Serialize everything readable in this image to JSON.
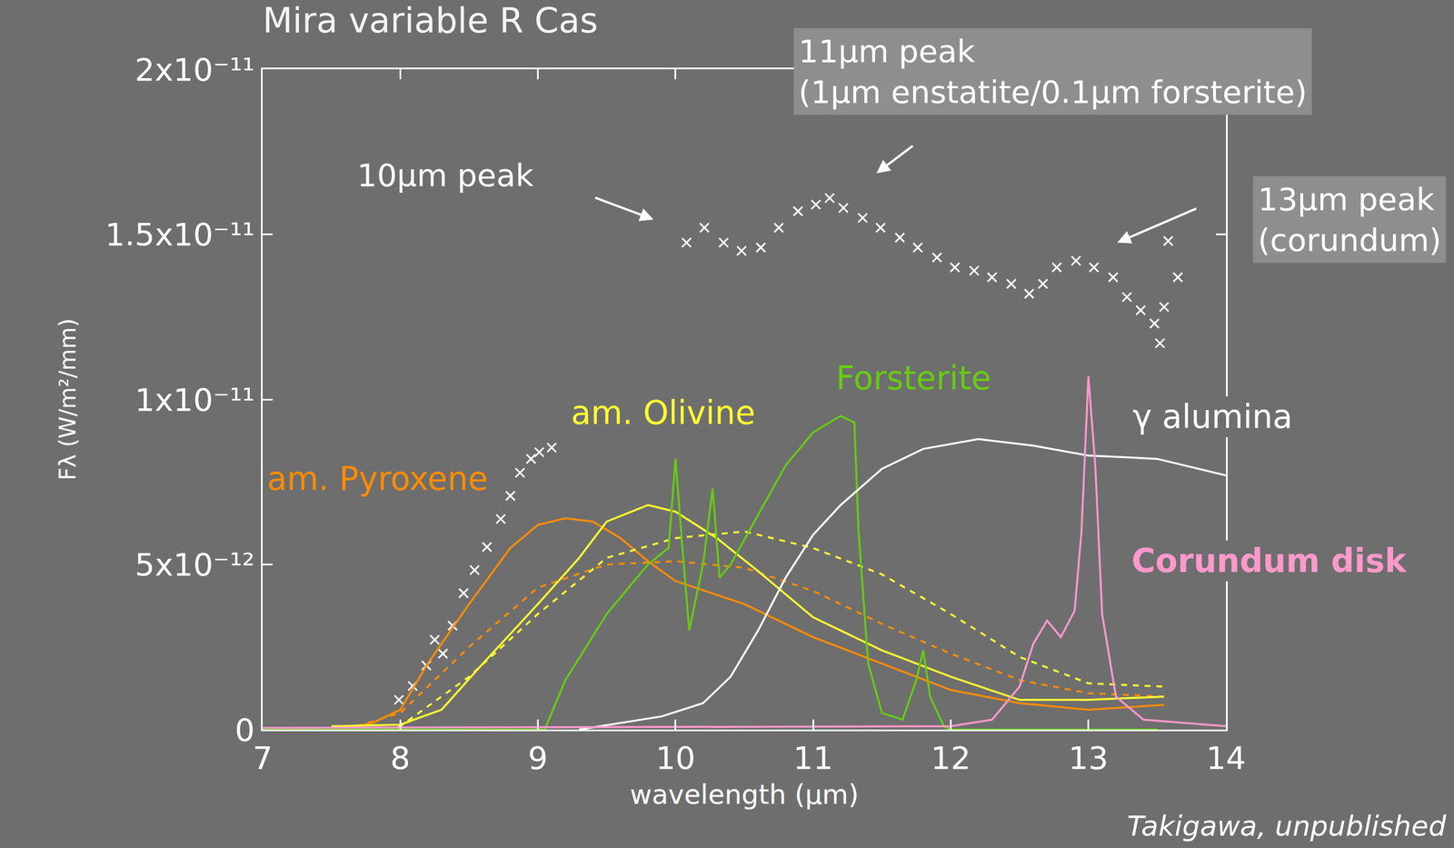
{
  "chart_data": {
    "type": "line",
    "title": "Mira variable R Cas",
    "x_label": "wavelength (μm)",
    "y_label": "Fλ (W/m²/mm)",
    "xlim": [
      7,
      14
    ],
    "xticks": [
      7,
      8,
      9,
      10,
      11,
      12,
      13,
      14
    ],
    "ylim": [
      0,
      2e-11
    ],
    "yticks": [
      0,
      {
        "value": 5e-12,
        "label": "5x10⁻¹²"
      },
      {
        "value": 1e-11,
        "label": "1x10⁻¹¹"
      },
      {
        "value": 1.5e-11,
        "label": "1.5x10⁻¹¹"
      },
      {
        "value": 2e-11,
        "label": "2x10⁻¹¹"
      }
    ],
    "grid": false,
    "annotations": [
      "10μm peak",
      "11μm peak",
      "(1μm enstatite/0.1μm forsterite)",
      "13μm peak",
      "(corundum)"
    ],
    "source": "Takigawa, unpublished",
    "series": [
      {
        "type": "scatter",
        "marker": "x",
        "color": "#ffffff",
        "x": [
          7.99,
          8.09,
          8.19,
          8.25,
          8.31,
          8.38,
          8.46,
          8.54,
          8.63,
          8.73,
          8.8,
          8.87,
          8.95,
          9.01,
          9.1,
          10.08,
          10.21,
          10.35,
          10.48,
          10.62,
          10.75,
          10.89,
          11.02,
          11.12,
          11.22,
          11.36,
          11.49,
          11.63,
          11.76,
          11.9,
          12.03,
          12.17,
          12.3,
          12.44,
          12.57,
          12.67,
          12.77,
          12.91,
          13.04,
          13.18,
          13.28,
          13.38,
          13.48,
          13.52,
          13.55,
          13.58,
          13.65
        ],
        "values": [
          9e-13,
          1.32e-12,
          1.94e-12,
          2.72e-12,
          2.3e-12,
          3.15e-12,
          4.13e-12,
          4.83e-12,
          5.53e-12,
          6.38e-12,
          7.08e-12,
          7.78e-12,
          8.2e-12,
          8.4e-12,
          8.54e-12,
          1.475e-11,
          1.52e-11,
          1.475e-11,
          1.45e-11,
          1.46e-11,
          1.52e-11,
          1.57e-11,
          1.59e-11,
          1.61e-11,
          1.58e-11,
          1.55e-11,
          1.52e-11,
          1.49e-11,
          1.46e-11,
          1.43e-11,
          1.4e-11,
          1.39e-11,
          1.37e-11,
          1.35e-11,
          1.32e-11,
          1.35e-11,
          1.4e-11,
          1.42e-11,
          1.4e-11,
          1.37e-11,
          1.31e-11,
          1.27e-11,
          1.23e-11,
          1.17e-11,
          1.28e-11,
          1.48e-11,
          1.37e-11
        ]
      },
      {
        "name": "am. Pyroxene",
        "type": "line",
        "line_style": "solid",
        "color": "#ff8c00",
        "x": [
          7.55,
          7.8,
          8.0,
          8.2,
          8.5,
          8.8,
          9.0,
          9.2,
          9.4,
          9.6,
          9.8,
          10.0,
          10.5,
          11.0,
          11.5,
          12.0,
          12.5,
          13.0,
          13.55
        ],
        "values": [
          0,
          2e-13,
          6e-13,
          2e-12,
          3.8e-12,
          5.5e-12,
          6.2e-12,
          6.4e-12,
          6.3e-12,
          5.8e-12,
          5.1e-12,
          4.5e-12,
          3.8e-12,
          2.8e-12,
          2e-12,
          1.2e-12,
          8e-13,
          6e-13,
          7.5e-13
        ]
      },
      {
        "type": "line",
        "line_style": "dash",
        "color": "#ff8c00",
        "x": [
          7.6,
          8.0,
          8.5,
          9.0,
          9.5,
          10.0,
          10.5,
          11.0,
          11.5,
          12.0,
          12.5,
          13.0,
          13.55
        ],
        "values": [
          0,
          5e-13,
          2.5e-12,
          4.3e-12,
          5e-12,
          5.1e-12,
          4.9e-12,
          4.2e-12,
          3.2e-12,
          2.3e-12,
          1.5e-12,
          1.1e-12,
          1e-12
        ]
      },
      {
        "name": "am. Olivine",
        "type": "line",
        "line_style": "solid",
        "color": "#ffff33",
        "x": [
          7.5,
          8.0,
          8.3,
          8.6,
          9.0,
          9.3,
          9.5,
          9.8,
          10.0,
          10.3,
          10.6,
          11.0,
          11.5,
          12.0,
          12.5,
          13.0,
          13.55
        ],
        "values": [
          1e-13,
          1.5e-13,
          6e-13,
          2e-12,
          3.8e-12,
          5.2e-12,
          6.3e-12,
          6.8e-12,
          6.6e-12,
          5.8e-12,
          4.8e-12,
          3.4e-12,
          2.4e-12,
          1.6e-12,
          9e-13,
          9e-13,
          1e-12
        ]
      },
      {
        "type": "line",
        "line_style": "dash",
        "color": "#ffff33",
        "x": [
          7.9,
          8.0,
          8.5,
          9.0,
          9.5,
          10.0,
          10.5,
          11.0,
          11.5,
          12.0,
          12.5,
          13.0,
          13.55
        ],
        "values": [
          0,
          1e-13,
          1.6e-12,
          3.5e-12,
          5.2e-12,
          5.8e-12,
          6e-12,
          5.5e-12,
          4.7e-12,
          3.5e-12,
          2.2e-12,
          1.4e-12,
          1.3e-12
        ]
      },
      {
        "name": "Forsterite",
        "type": "line",
        "line_style": "solid",
        "color": "#66cc11",
        "x": [
          7.0,
          9.05,
          9.2,
          9.5,
          9.8,
          9.95,
          10.0,
          10.05,
          10.1,
          10.2,
          10.27,
          10.32,
          10.4,
          10.6,
          10.8,
          11.0,
          11.2,
          11.3,
          11.33,
          11.4,
          11.5,
          11.65,
          11.75,
          11.8,
          11.85,
          11.95,
          12.0,
          13.5
        ],
        "values": [
          0,
          0,
          1.5e-12,
          3.5e-12,
          5e-12,
          5.5e-12,
          8.2e-12,
          5.5e-12,
          3e-12,
          5e-12,
          7.3e-12,
          4.6e-12,
          5e-12,
          6.5e-12,
          8e-12,
          9e-12,
          9.5e-12,
          9.3e-12,
          6e-12,
          2e-12,
          5e-13,
          3e-13,
          1.5e-12,
          2.4e-12,
          1e-12,
          1e-13,
          0,
          0
        ]
      },
      {
        "name": "γ alumina",
        "type": "line",
        "line_style": "solid",
        "color": "#ffffff",
        "x": [
          9.3,
          9.9,
          10.2,
          10.4,
          10.6,
          10.8,
          11.0,
          11.2,
          11.5,
          11.8,
          12.2,
          12.6,
          13.0,
          13.5,
          14.0
        ],
        "values": [
          0,
          4e-13,
          8e-13,
          1.6e-12,
          3e-12,
          4.6e-12,
          5.9e-12,
          6.8e-12,
          7.9e-12,
          8.5e-12,
          8.8e-12,
          8.6e-12,
          8.3e-12,
          8.2e-12,
          7.7e-12
        ]
      },
      {
        "name": "Corundum disk",
        "type": "line",
        "line_style": "solid",
        "color": "#ff99cc",
        "x": [
          7.0,
          12.0,
          12.3,
          12.5,
          12.6,
          12.7,
          12.8,
          12.9,
          12.95,
          13.0,
          13.05,
          13.1,
          13.2,
          13.4,
          14.0
        ],
        "values": [
          5e-14,
          1e-13,
          3e-13,
          1.3e-12,
          2.6e-12,
          3.3e-12,
          2.8e-12,
          3.6e-12,
          6e-12,
          1.07e-11,
          8e-12,
          3.5e-12,
          1e-12,
          3e-13,
          1e-13
        ]
      }
    ]
  }
}
